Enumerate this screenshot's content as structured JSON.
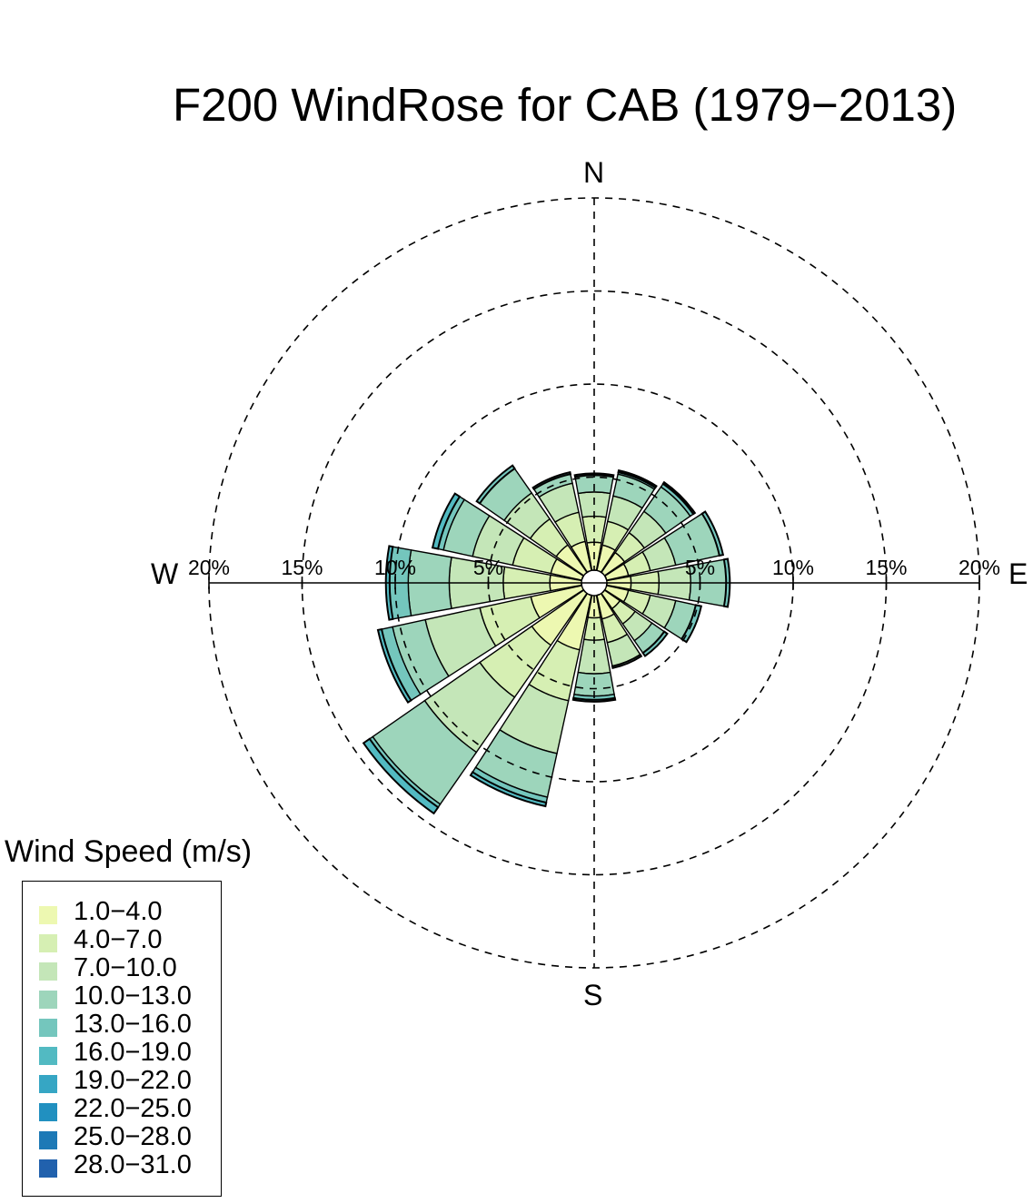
{
  "chart_data": {
    "type": "windrose",
    "title": "F200 WindRose for CAB (1979−2013)",
    "directions": [
      {
        "name": "N",
        "angle": 0
      },
      {
        "name": "NNE",
        "angle": 22.5
      },
      {
        "name": "NE",
        "angle": 45
      },
      {
        "name": "ENE",
        "angle": 67.5
      },
      {
        "name": "E",
        "angle": 90
      },
      {
        "name": "ESE",
        "angle": 112.5
      },
      {
        "name": "SE",
        "angle": 135
      },
      {
        "name": "SSE",
        "angle": 157.5
      },
      {
        "name": "S",
        "angle": 180
      },
      {
        "name": "SSW",
        "angle": 202.5
      },
      {
        "name": "SW",
        "angle": 225
      },
      {
        "name": "WSW",
        "angle": 247.5
      },
      {
        "name": "W",
        "angle": 270
      },
      {
        "name": "WNW",
        "angle": 292.5
      },
      {
        "name": "NW",
        "angle": 315
      },
      {
        "name": "NNW",
        "angle": 337.5
      }
    ],
    "speed_bins": [
      {
        "label": "1.0−4.0",
        "color": "#edf8b1"
      },
      {
        "label": "4.0−7.0",
        "color": "#d6efb3"
      },
      {
        "label": "7.0−10.0",
        "color": "#c4e6b8"
      },
      {
        "label": "10.0−13.0",
        "color": "#9dd5bb"
      },
      {
        "label": "13.0−16.0",
        "color": "#74c6bd"
      },
      {
        "label": "16.0−19.0",
        "color": "#52bac2"
      },
      {
        "label": "19.0−22.0",
        "color": "#36a6c4"
      },
      {
        "label": "22.0−25.0",
        "color": "#2190c0"
      },
      {
        "label": "25.0−28.0",
        "color": "#1d79b6"
      },
      {
        "label": "28.0−31.0",
        "color": "#2161ad"
      }
    ],
    "frequency_cumulative_percent": [
      [
        1.5,
        2.9,
        4.2,
        5.1,
        5.2
      ],
      [
        1.4,
        2.7,
        4.1,
        5.3,
        5.4,
        5.5
      ],
      [
        1.3,
        2.6,
        4.0,
        5.6,
        5.8,
        5.9
      ],
      [
        1.2,
        2.4,
        3.8,
        6.2,
        6.4
      ],
      [
        1.3,
        2.8,
        4.5,
        6.4,
        6.6
      ],
      [
        1.2,
        2.4,
        3.8,
        4.9,
        5.2
      ],
      [
        1.0,
        2.0,
        3.1,
        3.9,
        4.1
      ],
      [
        1.3,
        2.6,
        3.9,
        4.0
      ],
      [
        1.2,
        2.4,
        4.2,
        5.4,
        5.6,
        5.7
      ],
      [
        3.0,
        5.8,
        8.7,
        11.1,
        11.4,
        11.6
      ],
      [
        3.4,
        6.8,
        10.4,
        13.8,
        14.0,
        14.4
      ],
      [
        2.8,
        5.6,
        8.6,
        10.4,
        11.0,
        11.2
      ],
      [
        1.7,
        4.2,
        7.1,
        9.3,
        10.3,
        10.5
      ],
      [
        1.7,
        3.8,
        6.0,
        7.6,
        7.9,
        8.2
      ],
      [
        1.8,
        3.5,
        5.2,
        6.8,
        7.0
      ],
      [
        1.6,
        3.2,
        4.8,
        5.3,
        5.4
      ]
    ],
    "radial_axis": {
      "unit": "%",
      "rings": [
        5,
        10,
        15,
        20
      ],
      "ring_labels": [
        "5%",
        "10%",
        "15%",
        "20%"
      ],
      "max": 20
    },
    "compass_labels": {
      "n": "N",
      "e": "E",
      "s": "S",
      "w": "W"
    },
    "legend_title": "Wind Speed (m/s)",
    "legend_position": "bottom-left",
    "grid": "dashed"
  }
}
